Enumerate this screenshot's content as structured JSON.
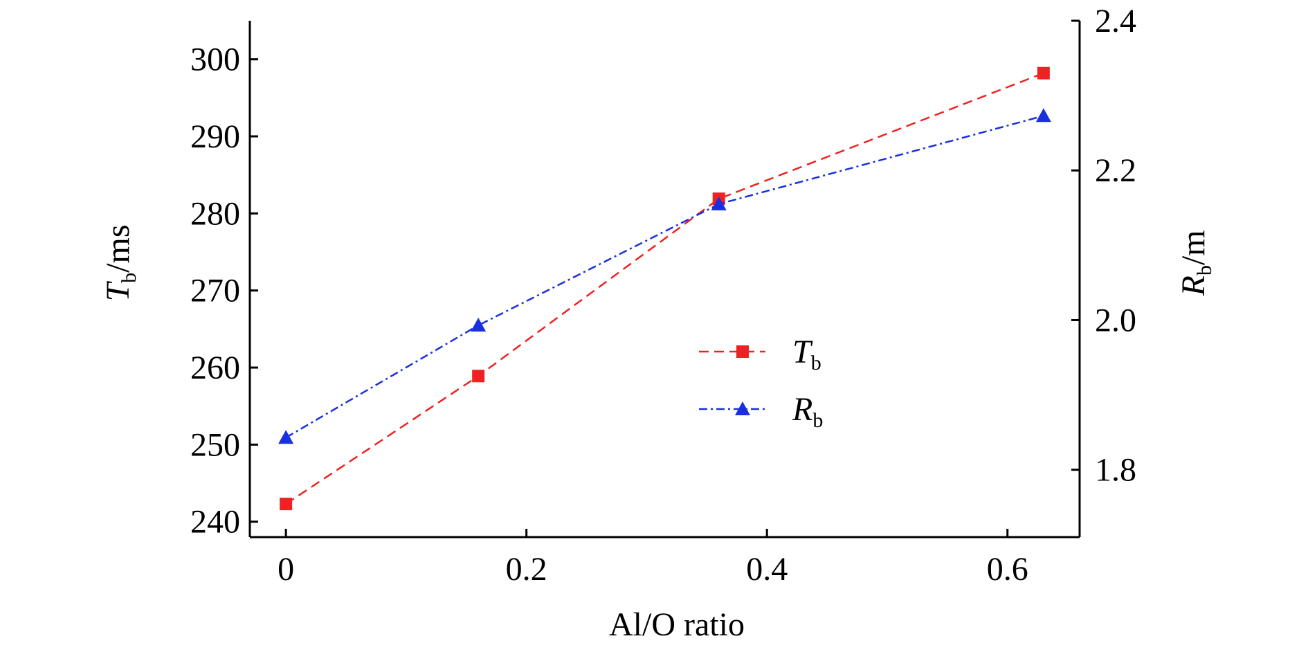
{
  "chart_data": {
    "type": "line",
    "xlabel": "Al/O ratio",
    "xlim": [
      -0.03,
      0.66
    ],
    "xticks": [
      0,
      0.2,
      0.4,
      0.6
    ],
    "x_tick_labels": [
      "0",
      "0.2",
      "0.4",
      "0.6"
    ],
    "y_left": {
      "label_main": "T",
      "label_sub": "b",
      "label_unit": "/ms",
      "lim": [
        238,
        305
      ],
      "ticks": [
        240,
        250,
        260,
        270,
        280,
        290,
        300
      ],
      "tick_labels": [
        "240",
        "250",
        "260",
        "270",
        "280",
        "290",
        "300"
      ]
    },
    "y_right": {
      "label_main": "R",
      "label_sub": "b",
      "label_unit": "/m",
      "lim": [
        1.71,
        2.4
      ],
      "ticks": [
        1.8,
        2.0,
        2.2,
        2.4
      ],
      "tick_labels": [
        "1.8",
        "2.0",
        "2.2",
        "2.4"
      ]
    },
    "series": [
      {
        "name_main": "T",
        "name_sub": "b",
        "axis": "left",
        "color": "#ee2222",
        "marker": "square",
        "line_style": "dashed",
        "x": [
          0,
          0.16,
          0.36,
          0.63
        ],
        "values": [
          242.3,
          258.9,
          281.9,
          298.2
        ]
      },
      {
        "name_main": "R",
        "name_sub": "b",
        "axis": "right",
        "color": "#1a2fe0",
        "marker": "triangle",
        "line_style": "dash-dot",
        "x": [
          0,
          0.16,
          0.36,
          0.63
        ],
        "values": [
          1.843,
          1.993,
          2.155,
          2.273
        ]
      }
    ],
    "legend_position": "center"
  }
}
